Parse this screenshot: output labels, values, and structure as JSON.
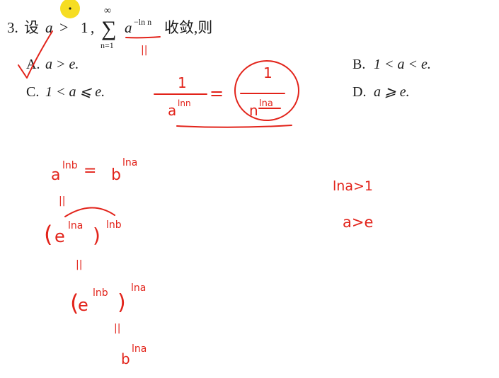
{
  "problem": {
    "number": "3.",
    "stem_lead": "设",
    "var_a": "a",
    "gt": ">",
    "one": "1",
    "comma": ",",
    "sum_top": "∞",
    "sum_symbol": "∑",
    "sum_bottom": "n=1",
    "term_base": "a",
    "term_exp": "−ln n",
    "stem_tail": "收敛,则",
    "options": [
      {
        "label": "A.",
        "text": "a > e."
      },
      {
        "label": "B.",
        "text": "1 < a < e."
      },
      {
        "label": "C.",
        "text": "1 < a ⩽ e."
      },
      {
        "label": "D.",
        "text": "a ⩾ e."
      }
    ]
  },
  "handwriting": {
    "equals_mark": "||",
    "frac_left_num": "1",
    "frac_left_den_base": "a",
    "frac_left_den_exp": "lnn",
    "equals": "=",
    "frac_right_num": "1",
    "frac_right_den_base": "n",
    "frac_right_den_exp": "lna",
    "identity_left_base": "a",
    "identity_left_exp": "lnb",
    "identity_equals": "=",
    "identity_right_base": "b",
    "identity_right_exp": "lna",
    "step1_equals": "||",
    "step1_open": "(",
    "step1_base": "e",
    "step1_inner_exp": "lna",
    "step1_close": ")",
    "step1_outer_exp": "lnb",
    "step2_equals": "||",
    "step2_open": "(",
    "step2_base": "e",
    "step2_inner_exp": "lnb",
    "step2_close": ")",
    "step2_outer_exp": "lna",
    "step3_equals": "||",
    "step3_base": "b",
    "step3_exp": "lna",
    "cond1": "lna>1",
    "cond2": "a>e"
  },
  "colors": {
    "ink": "#e2231a",
    "printed_text": "#1a1a1a",
    "cursor_highlight": "#f5d90a"
  }
}
